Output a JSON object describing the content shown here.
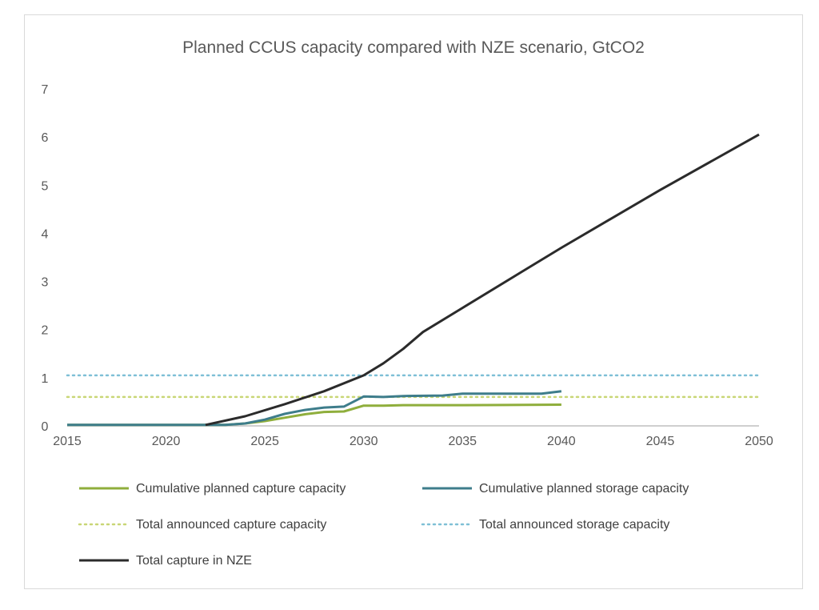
{
  "chart_data": {
    "type": "line",
    "title": "Planned CCUS capacity compared with NZE scenario, GtCO2",
    "xlabel": "",
    "ylabel": "",
    "xlim": [
      2015,
      2050
    ],
    "ylim": [
      0,
      7
    ],
    "xticks": [
      "2015",
      "2020",
      "2025",
      "2030",
      "2035",
      "2040",
      "2045",
      "2050"
    ],
    "yticks": [
      "0",
      "1",
      "2",
      "3",
      "4",
      "5",
      "6",
      "7"
    ],
    "grid": false,
    "legend_position": "bottom",
    "series": [
      {
        "name": "Cumulative planned capture capacity",
        "style": "solid",
        "color": "#8fae3c",
        "x": [
          2015,
          2020,
          2022,
          2023,
          2024,
          2025,
          2026,
          2027,
          2028,
          2029,
          2030,
          2031,
          2032,
          2035,
          2040
        ],
        "y": [
          0.02,
          0.02,
          0.02,
          0.02,
          0.05,
          0.1,
          0.17,
          0.24,
          0.29,
          0.3,
          0.42,
          0.42,
          0.43,
          0.43,
          0.44
        ]
      },
      {
        "name": "Cumulative planned storage capacity",
        "style": "solid",
        "color": "#3e7d8b",
        "x": [
          2015,
          2020,
          2022,
          2023,
          2024,
          2025,
          2026,
          2027,
          2028,
          2029,
          2030,
          2031,
          2032,
          2034,
          2035,
          2039,
          2040
        ],
        "y": [
          0.02,
          0.02,
          0.02,
          0.02,
          0.05,
          0.13,
          0.25,
          0.33,
          0.38,
          0.4,
          0.61,
          0.6,
          0.62,
          0.63,
          0.67,
          0.67,
          0.72
        ]
      },
      {
        "name": "Total announced capture capacity",
        "style": "dotted",
        "color": "#c9d676",
        "x": [
          2015,
          2050
        ],
        "y": [
          0.6,
          0.6
        ]
      },
      {
        "name": "Total announced storage capacity",
        "style": "dotted",
        "color": "#7fc0d6",
        "x": [
          2015,
          2050
        ],
        "y": [
          1.05,
          1.05
        ]
      },
      {
        "name": "Total capture in NZE",
        "style": "solid",
        "color": "#2b2b2b",
        "x": [
          2022,
          2024,
          2026,
          2028,
          2030,
          2031,
          2032,
          2033,
          2035,
          2038,
          2040,
          2045,
          2050
        ],
        "y": [
          0.02,
          0.2,
          0.45,
          0.72,
          1.05,
          1.3,
          1.6,
          1.95,
          2.45,
          3.2,
          3.7,
          4.9,
          6.05
        ]
      }
    ]
  }
}
